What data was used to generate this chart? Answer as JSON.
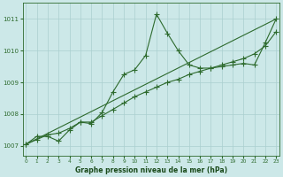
{
  "line1_x": [
    0,
    1,
    2,
    3,
    4,
    5,
    6,
    7,
    8,
    9,
    10,
    11,
    12,
    13,
    14,
    15,
    16,
    17,
    18,
    19,
    20,
    21,
    22,
    23
  ],
  "line1_y": [
    1007.05,
    1007.3,
    1007.3,
    1007.15,
    1007.5,
    1007.75,
    1007.7,
    1008.05,
    1008.7,
    1009.25,
    1009.4,
    1009.85,
    1011.15,
    1010.55,
    1010.0,
    1009.55,
    1009.45,
    1009.45,
    1009.5,
    1009.55,
    1009.6,
    1009.55,
    1010.25,
    1011.0
  ],
  "line2_x": [
    0,
    23
  ],
  "line2_y": [
    1007.05,
    1011.0
  ],
  "line3_x": [
    0,
    1,
    2,
    3,
    4,
    5,
    6,
    7,
    8,
    9,
    10,
    11,
    12,
    13,
    14,
    15,
    16,
    17,
    18,
    19,
    20,
    21,
    22,
    23
  ],
  "line3_y": [
    1007.05,
    1007.2,
    1007.35,
    1007.4,
    1007.55,
    1007.75,
    1007.75,
    1007.95,
    1008.15,
    1008.35,
    1008.55,
    1008.7,
    1008.85,
    1009.0,
    1009.1,
    1009.25,
    1009.35,
    1009.45,
    1009.55,
    1009.65,
    1009.75,
    1009.9,
    1010.15,
    1010.6
  ],
  "line_color": "#2d6a2d",
  "bg_color": "#cce8e8",
  "grid_color": "#aacfcf",
  "xlabel": "Graphe pression niveau de la mer (hPa)",
  "xlabel_color": "#1a4a1a",
  "ylim": [
    1006.7,
    1011.5
  ],
  "xlim": [
    -0.3,
    23.3
  ],
  "yticks": [
    1007,
    1008,
    1009,
    1010,
    1011
  ],
  "xticks": [
    0,
    1,
    2,
    3,
    4,
    5,
    6,
    7,
    8,
    9,
    10,
    11,
    12,
    13,
    14,
    15,
    16,
    17,
    18,
    19,
    20,
    21,
    22,
    23
  ],
  "markersize": 2.2,
  "linewidth": 0.8
}
